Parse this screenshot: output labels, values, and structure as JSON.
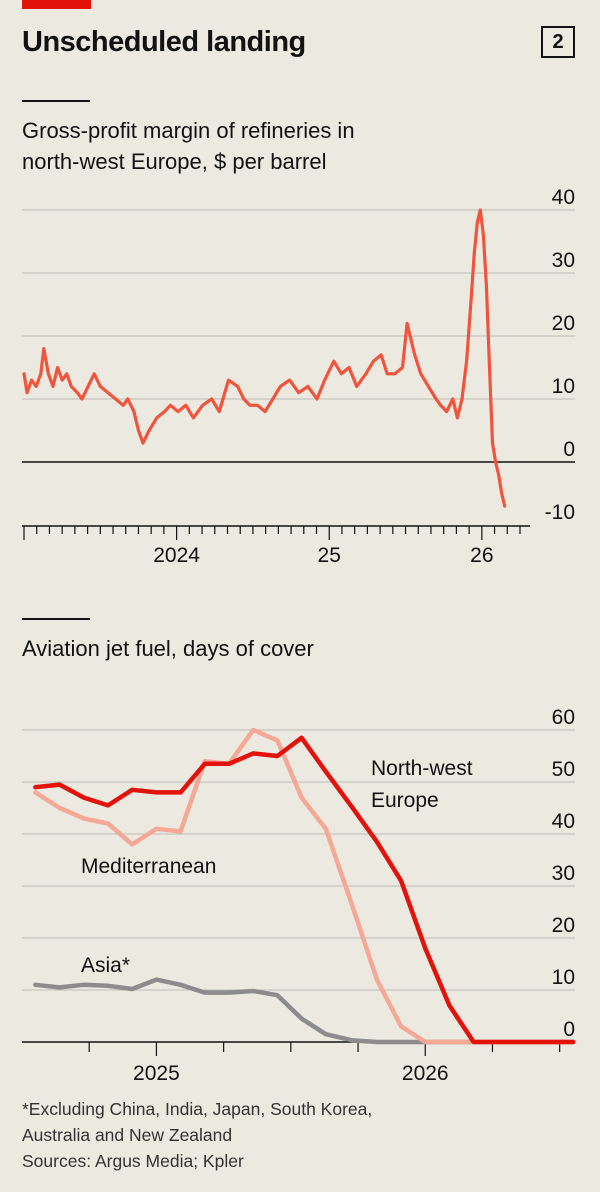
{
  "header": {
    "title": "Unscheduled landing",
    "chart_number": "2"
  },
  "charts": {
    "margin": {
      "subtitle_line1": "Gross-profit margin of refineries in",
      "subtitle_line2": "north-west Europe, $ per barrel"
    },
    "jetfuel": {
      "subtitle": "Aviation jet fuel, days of cover"
    }
  },
  "footnote": {
    "line1": "*Excluding China, India, Japan, South Korea,",
    "line2": "Australia and New Zealand",
    "sources": "Sources: Argus Media; Kpler"
  },
  "colors": {
    "background": "#ebe9e0",
    "accent_red": "#e3120b",
    "margin_line": "#f0543c",
    "nw_europe": "#e3120b",
    "mediterranean": "#f5a896",
    "asia": "#8c8c8c",
    "grid": "#bdbbb3"
  },
  "chart_data": [
    {
      "type": "line",
      "title": "Gross-profit margin of refineries in north-west Europe, $ per barrel",
      "xlabel": "",
      "ylabel": "$ per barrel",
      "xlim": [
        2023.0,
        2026.25
      ],
      "ylim": [
        -10,
        40
      ],
      "yticks": [
        40,
        30,
        20,
        10,
        0,
        -10
      ],
      "xtick_labels": [
        {
          "label": "2024",
          "x": 2024.0
        },
        {
          "label": "25",
          "x": 2025.0
        },
        {
          "label": "26",
          "x": 2026.0
        }
      ],
      "series": [
        {
          "name": "Gross-profit margin",
          "x": [
            2023.0,
            2023.02,
            2023.05,
            2023.08,
            2023.11,
            2023.13,
            2023.16,
            2023.19,
            2023.22,
            2023.25,
            2023.28,
            2023.31,
            2023.35,
            2023.38,
            2023.42,
            2023.46,
            2023.5,
            2023.55,
            2023.6,
            2023.65,
            2023.68,
            2023.72,
            2023.75,
            2023.78,
            2023.82,
            2023.87,
            2023.92,
            2023.96,
            2024.01,
            2024.06,
            2024.11,
            2024.17,
            2024.23,
            2024.28,
            2024.34,
            2024.4,
            2024.44,
            2024.48,
            2024.53,
            2024.58,
            2024.63,
            2024.68,
            2024.74,
            2024.8,
            2024.86,
            2024.92,
            2024.97,
            2025.03,
            2025.08,
            2025.13,
            2025.18,
            2025.24,
            2025.29,
            2025.34,
            2025.38,
            2025.43,
            2025.48,
            2025.51,
            2025.56,
            2025.6,
            2025.65,
            2025.7,
            2025.73,
            2025.77,
            2025.81,
            2025.84,
            2025.87,
            2025.9,
            2025.93,
            2025.95,
            2025.97,
            2025.99,
            2026.01,
            2026.03,
            2026.05,
            2026.07,
            2026.09,
            2026.11,
            2026.13,
            2026.15
          ],
          "values": [
            14,
            11,
            13,
            12,
            14,
            18,
            14,
            12,
            15,
            13,
            14,
            12,
            11,
            10,
            12,
            14,
            12,
            11,
            10,
            9,
            10,
            8,
            5,
            3,
            5,
            7,
            8,
            9,
            8,
            9,
            7,
            9,
            10,
            8,
            13,
            12,
            10,
            9,
            9,
            8,
            10,
            12,
            13,
            11,
            12,
            10,
            13,
            16,
            14,
            15,
            12,
            14,
            16,
            17,
            14,
            14,
            15,
            22,
            17,
            14,
            12,
            10,
            9,
            8,
            10,
            7,
            10,
            16,
            26,
            33,
            38,
            40,
            36,
            28,
            15,
            3,
            0,
            -2,
            -5,
            -7
          ]
        }
      ]
    },
    {
      "type": "line",
      "title": "Aviation jet fuel, days of cover",
      "xlabel": "",
      "ylabel": "days of cover",
      "xlim": [
        2024.5,
        2026.65
      ],
      "ylim": [
        0,
        60
      ],
      "yticks": [
        60,
        50,
        40,
        30,
        20,
        10,
        0
      ],
      "xtick_labels": [
        {
          "label": "2025",
          "x": 2025.0
        },
        {
          "label": "2026",
          "x": 2026.0
        }
      ],
      "x": [
        2024.55,
        2024.64,
        2024.73,
        2024.82,
        2024.91,
        2025.0,
        2025.09,
        2025.18,
        2025.27,
        2025.36,
        2025.45,
        2025.54,
        2025.63,
        2025.73,
        2025.82,
        2025.91,
        2026.0,
        2026.09,
        2026.18,
        2026.27,
        2026.36,
        2026.45,
        2026.55
      ],
      "series": [
        {
          "name": "North-west Europe",
          "label_line1": "North-west",
          "label_line2": "Europe",
          "values": [
            49,
            49.5,
            47,
            45.5,
            48.5,
            48,
            48,
            53.5,
            53.5,
            55.5,
            55,
            58.5,
            52,
            45,
            38.5,
            31,
            18,
            7,
            0,
            0,
            0,
            0,
            0
          ]
        },
        {
          "name": "Mediterranean",
          "label": "Mediterranean",
          "values": [
            48,
            45,
            43,
            42,
            38,
            41,
            40.5,
            54,
            53.5,
            60,
            58,
            47,
            41,
            26,
            12,
            3,
            0,
            0,
            0,
            0,
            0,
            0,
            0
          ]
        },
        {
          "name": "Asia*",
          "label": "Asia*",
          "values": [
            11,
            10.5,
            11,
            10.8,
            10.2,
            12,
            11,
            9.5,
            9.5,
            9.8,
            9,
            4.5,
            1.5,
            0.3,
            0,
            0,
            0,
            0,
            0,
            0,
            0,
            0,
            0
          ]
        }
      ]
    }
  ]
}
